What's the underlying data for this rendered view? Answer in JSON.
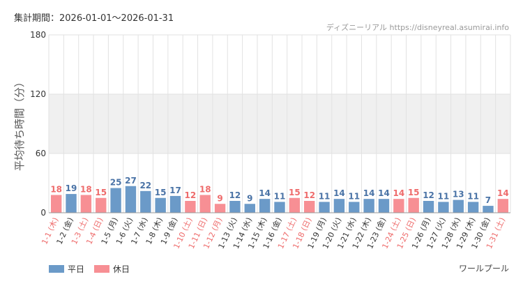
{
  "header": {
    "period_label": "集計期間：2026-01-01～2026-01-31",
    "source_label": "ディズニーリアル https://disneyreal.asumirai.info"
  },
  "attraction_name": "ワールプール",
  "colors": {
    "weekday": "#6b9ac8",
    "holiday": "#f78f94",
    "holiday_text": "#ee6b6b",
    "band": "#f0f0f0",
    "grid": "#e2e2e2"
  },
  "chart_data": {
    "type": "bar",
    "title": "",
    "xlabel": "",
    "ylabel": "平均待ち時間（分）",
    "ylim": [
      0,
      180
    ],
    "yticks": [
      0,
      60,
      120,
      180
    ],
    "shaded_band": [
      60,
      120
    ],
    "grid": true,
    "legend_position": "bottom-left",
    "legend": [
      "平日",
      "休日"
    ],
    "categories": [
      "1-1 (木)",
      "1-2 (金)",
      "1-3 (土)",
      "1-4 (日)",
      "1-5 (月)",
      "1-6 (火)",
      "1-7 (水)",
      "1-8 (木)",
      "1-9 (金)",
      "1-10 (土)",
      "1-11 (日)",
      "1-12 (月)",
      "1-13 (火)",
      "1-14 (水)",
      "1-15 (木)",
      "1-16 (金)",
      "1-17 (土)",
      "1-18 (日)",
      "1-19 (月)",
      "1-20 (火)",
      "1-21 (水)",
      "1-22 (木)",
      "1-23 (金)",
      "1-24 (土)",
      "1-25 (日)",
      "1-26 (月)",
      "1-27 (火)",
      "1-28 (水)",
      "1-29 (木)",
      "1-30 (金)",
      "1-31 (土)"
    ],
    "values": [
      18,
      19,
      18,
      15,
      25,
      27,
      22,
      15,
      17,
      12,
      18,
      9,
      12,
      9,
      14,
      11,
      15,
      12,
      11,
      14,
      11,
      14,
      14,
      14,
      15,
      12,
      11,
      13,
      11,
      7,
      14
    ],
    "day_type": [
      "休日",
      "平日",
      "休日",
      "休日",
      "平日",
      "平日",
      "平日",
      "平日",
      "平日",
      "休日",
      "休日",
      "休日",
      "平日",
      "平日",
      "平日",
      "平日",
      "休日",
      "休日",
      "平日",
      "平日",
      "平日",
      "平日",
      "平日",
      "休日",
      "休日",
      "平日",
      "平日",
      "平日",
      "平日",
      "平日",
      "休日"
    ]
  }
}
